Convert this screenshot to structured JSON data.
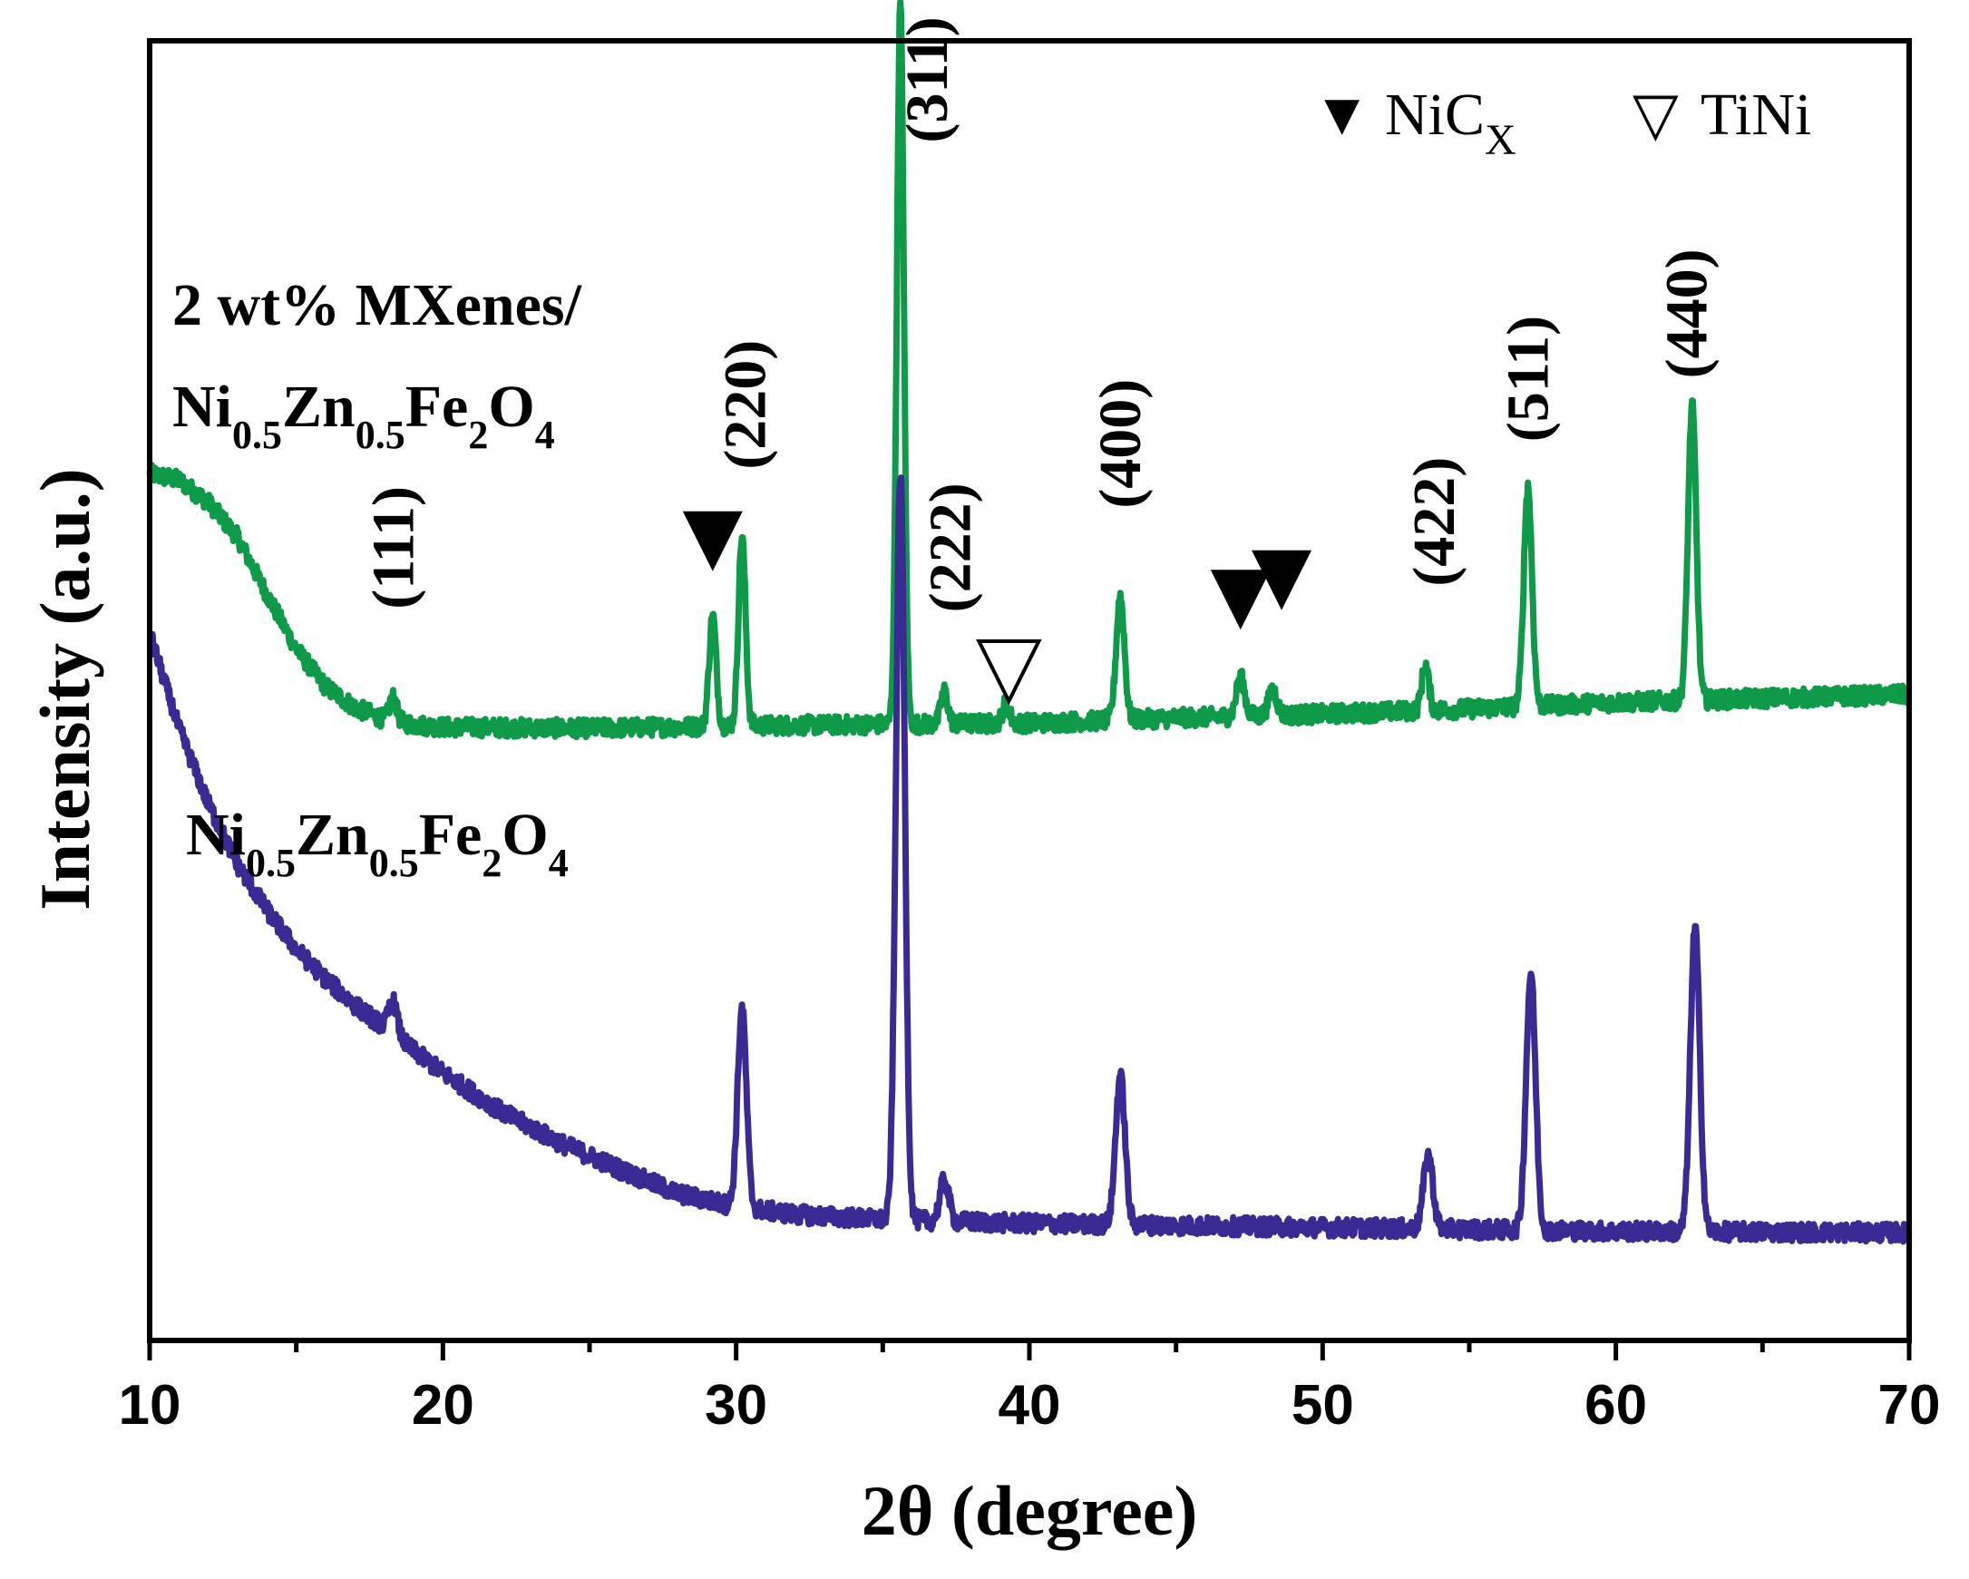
{
  "chart_data": {
    "type": "line",
    "xlabel": "2θ (degree)",
    "ylabel": "Intensity (a.u.)",
    "xlim": [
      10,
      70
    ],
    "ylim": [
      0,
      100
    ],
    "x_ticks": [
      "10",
      "20",
      "30",
      "40",
      "50",
      "60",
      "70"
    ],
    "legend": [
      {
        "symbol": "▼",
        "label": "NiC",
        "sub": "X"
      },
      {
        "symbol": "▽",
        "label": "TiNi",
        "sub": ""
      }
    ],
    "series": [
      {
        "name": "2 wt% MXenes/ Ni0.5Zn0.5Fe2O4",
        "label_line1": "2 wt% MXenes/",
        "label_line2": {
          "a": "Ni",
          "b": "0.5",
          "c": "Zn",
          "d": "0.5",
          "e": "Fe",
          "f": "2",
          "g": "O",
          "h": "4"
        },
        "color": "#0e9a48",
        "baseline": [
          [
            10,
            66.7
          ],
          [
            11,
            66.2
          ],
          [
            12,
            64.5
          ],
          [
            13,
            61.8
          ],
          [
            14,
            57.4
          ],
          [
            15,
            53.2
          ],
          [
            16,
            50.3
          ],
          [
            17,
            48.7
          ],
          [
            18,
            47.8
          ],
          [
            19,
            47.4
          ],
          [
            20,
            47.2
          ],
          [
            25,
            47.1
          ],
          [
            30,
            47.3
          ],
          [
            35,
            47.4
          ],
          [
            40,
            47.5
          ],
          [
            45,
            47.9
          ],
          [
            50,
            48.2
          ],
          [
            55,
            48.6
          ],
          [
            60,
            49.1
          ],
          [
            65,
            49.4
          ],
          [
            70,
            49.7
          ]
        ],
        "peaks": [
          {
            "x": 18.3,
            "h": 1.8,
            "w": 0.12
          },
          {
            "x": 29.2,
            "h": 8.5,
            "w": 0.12
          },
          {
            "x": 30.2,
            "h": 14.6,
            "w": 0.12
          },
          {
            "x": 35.6,
            "h": 55.4,
            "w": 0.12
          },
          {
            "x": 37.1,
            "h": 2.5,
            "w": 0.12
          },
          {
            "x": 39.2,
            "h": 1.5,
            "w": 0.12
          },
          {
            "x": 43.1,
            "h": 9.5,
            "w": 0.14
          },
          {
            "x": 47.2,
            "h": 3.0,
            "w": 0.14
          },
          {
            "x": 48.3,
            "h": 2.0,
            "w": 0.14
          },
          {
            "x": 53.5,
            "h": 3.5,
            "w": 0.12
          },
          {
            "x": 57.0,
            "h": 16.9,
            "w": 0.14
          },
          {
            "x": 62.6,
            "h": 22.7,
            "w": 0.14
          }
        ]
      },
      {
        "name": "Ni0.5Zn0.5Fe2O4",
        "label": {
          "a": "Ni",
          "b": "0.5",
          "c": "Zn",
          "d": "0.5",
          "e": "Fe",
          "f": "2",
          "g": "O",
          "h": "4"
        },
        "color": "#3a2a93",
        "baseline": [
          [
            10,
            54.4
          ],
          [
            11,
            47.1
          ],
          [
            12,
            41.3
          ],
          [
            13,
            36.6
          ],
          [
            14,
            33.1
          ],
          [
            15,
            30.1
          ],
          [
            16,
            27.8
          ],
          [
            17,
            25.8
          ],
          [
            18,
            24.1
          ],
          [
            19,
            22.3
          ],
          [
            20,
            20.6
          ],
          [
            22,
            17.6
          ],
          [
            24,
            15.2
          ],
          [
            26,
            13.2
          ],
          [
            28,
            11.3
          ],
          [
            30,
            10.3
          ],
          [
            32,
            9.7
          ],
          [
            35,
            9.3
          ],
          [
            40,
            9.0
          ],
          [
            50,
            8.7
          ],
          [
            60,
            8.4
          ],
          [
            70,
            8.3
          ]
        ],
        "peaks": [
          {
            "x": 18.3,
            "h": 2.5,
            "w": 0.15
          },
          {
            "x": 30.2,
            "h": 15.3,
            "w": 0.15
          },
          {
            "x": 35.6,
            "h": 57.5,
            "w": 0.15
          },
          {
            "x": 37.1,
            "h": 3.2,
            "w": 0.15
          },
          {
            "x": 43.1,
            "h": 11.5,
            "w": 0.16
          },
          {
            "x": 53.6,
            "h": 5.7,
            "w": 0.16
          },
          {
            "x": 57.1,
            "h": 19.8,
            "w": 0.16
          },
          {
            "x": 62.7,
            "h": 23.4,
            "w": 0.16
          }
        ]
      }
    ],
    "miller_indices": [
      {
        "label": "(111)",
        "x": 18.3,
        "y": 61
      },
      {
        "label": "(220)",
        "x": 30.3,
        "y": 72
      },
      {
        "label": "(311)",
        "x": 36.5,
        "y": 97
      },
      {
        "label": "(222)",
        "x": 37.3,
        "y": 61
      },
      {
        "label": "(400)",
        "x": 43.1,
        "y": 69
      },
      {
        "label": "(422)",
        "x": 53.8,
        "y": 63
      },
      {
        "label": "(511)",
        "x": 57.0,
        "y": 74
      },
      {
        "label": "(440)",
        "x": 62.4,
        "y": 79
      }
    ],
    "phase_markers": [
      {
        "type": "NiCx",
        "x": 29.2,
        "y": 61.5
      },
      {
        "type": "NiCx",
        "x": 47.2,
        "y": 57
      },
      {
        "type": "NiCx",
        "x": 48.6,
        "y": 58.5
      },
      {
        "type": "TiNi",
        "x": 39.3,
        "y": 51.5
      }
    ]
  }
}
